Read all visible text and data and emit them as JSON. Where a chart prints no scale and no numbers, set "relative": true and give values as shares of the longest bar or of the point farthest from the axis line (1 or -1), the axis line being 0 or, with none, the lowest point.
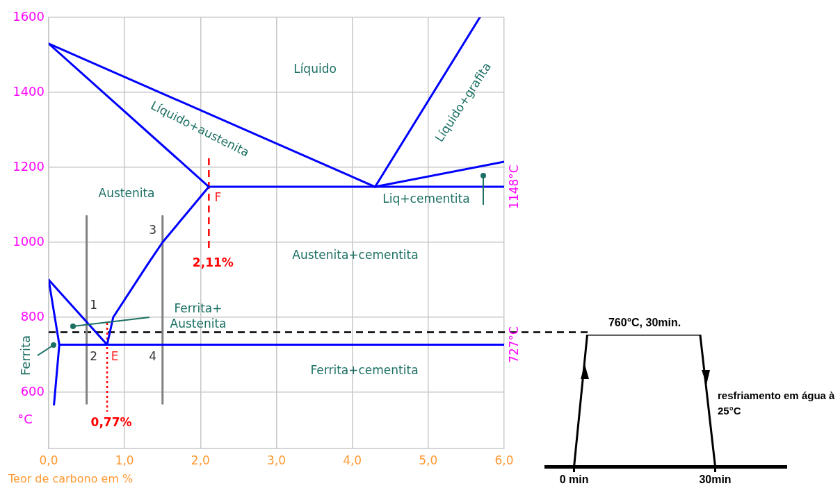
{
  "chart_data": [
    {
      "type": "line",
      "xlabel": "Teor de carbono em %",
      "ylabel": "°C",
      "xlim": [
        0,
        6
      ],
      "xticks": [
        {
          "value": 0,
          "label": "0,0"
        },
        {
          "value": 1,
          "label": "1,0"
        },
        {
          "value": 2,
          "label": "2,0"
        },
        {
          "value": 3,
          "label": "3,0"
        },
        {
          "value": 4,
          "label": "4,0"
        },
        {
          "value": 5,
          "label": "5,0"
        },
        {
          "value": 6,
          "label": "6,0"
        }
      ],
      "ylim": [
        450,
        1600
      ],
      "yticks": [
        600,
        800,
        1000,
        1200,
        1400,
        1600
      ],
      "grid": true,
      "legend": false,
      "marker": "none",
      "line_style": "solid",
      "series": [
        {
          "color": "#0000ff",
          "x": [
            0,
            4.3
          ],
          "values": [
            1530,
            1148
          ]
        },
        {
          "color": "#0000ff",
          "x": [
            0,
            2.11
          ],
          "values": [
            1530,
            1148
          ]
        },
        {
          "color": "#0000ff",
          "x": [
            2.11,
            6
          ],
          "values": [
            1148,
            1148
          ]
        },
        {
          "color": "#0000ff",
          "x": [
            4.3,
            5.68
          ],
          "values": [
            1148,
            1600
          ]
        },
        {
          "color": "#0000ff",
          "x": [
            4.3,
            6
          ],
          "values": [
            1148,
            1215
          ]
        },
        {
          "color": "#0000ff",
          "x": [
            0.77,
            0.85,
            1.3,
            1.5,
            2.11
          ],
          "values": [
            727,
            800,
            940,
            1000,
            1148
          ]
        },
        {
          "color": "#0000ff",
          "x": [
            0,
            0.77
          ],
          "values": [
            900,
            727
          ]
        },
        {
          "color": "#0000ff",
          "x": [
            0,
            0.14,
            0.07
          ],
          "values": [
            900,
            727,
            567
          ]
        },
        {
          "color": "#0000ff",
          "x": [
            0.14,
            6
          ],
          "values": [
            727,
            727
          ]
        },
        {
          "color": "#808080",
          "x": [
            0.5,
            0.5
          ],
          "values": [
            570,
            1070
          ]
        },
        {
          "color": "#808080",
          "x": [
            1.5,
            1.5
          ],
          "values": [
            570,
            1070
          ]
        }
      ],
      "ref_lines": [
        {
          "axis": "y",
          "value": 760,
          "color": "#000000",
          "line_style": "dashed"
        },
        {
          "axis": "x",
          "value": 0.77,
          "label": "0,77%",
          "color": "#ff0000",
          "line_style": "dotted"
        },
        {
          "axis": "x",
          "value": 2.11,
          "label": "2,11%",
          "color": "#ff0000",
          "line_style": "dashed"
        }
      ],
      "annotations": [
        "Líquido",
        "Líquido+austenita",
        "Líquido+grafita",
        "Austenita",
        "Liq+cementita",
        "Austenita+cementita",
        "Ferrita+ Austenita",
        "Ferrita+cementita",
        "Ferrita",
        {
          "text": "F",
          "x": 2.11,
          "y": 1148
        },
        {
          "text": "E",
          "x": 0.77,
          "y": 727
        },
        {
          "text": "1",
          "x": 0.5,
          "y": 790
        },
        {
          "text": "2",
          "x": 0.5,
          "y": 727
        },
        {
          "text": "3",
          "x": 1.5,
          "y": 1000
        },
        {
          "text": "4",
          "x": 1.5,
          "y": 727
        },
        {
          "text": "1148°C",
          "x": 6,
          "y": 1148
        },
        {
          "text": "727°C",
          "x": 6,
          "y": 727
        }
      ]
    },
    {
      "type": "line",
      "relative": true,
      "xlim": [
        -6,
        45
      ],
      "xticks": [
        {
          "value": 0,
          "label": "0 min"
        },
        {
          "value": 30,
          "label": "30min"
        }
      ],
      "legend": false,
      "marker": "none",
      "line_style": "solid",
      "series": [
        {
          "color": "#000000",
          "x": [
            0,
            2.8,
            26.8,
            30
          ],
          "values": [
            0,
            1,
            1,
            0
          ]
        }
      ],
      "annotations": [
        {
          "text": "760°C, 30min.",
          "x": 15,
          "y": 1
        },
        "resfriamento em água à 25°C"
      ]
    }
  ]
}
